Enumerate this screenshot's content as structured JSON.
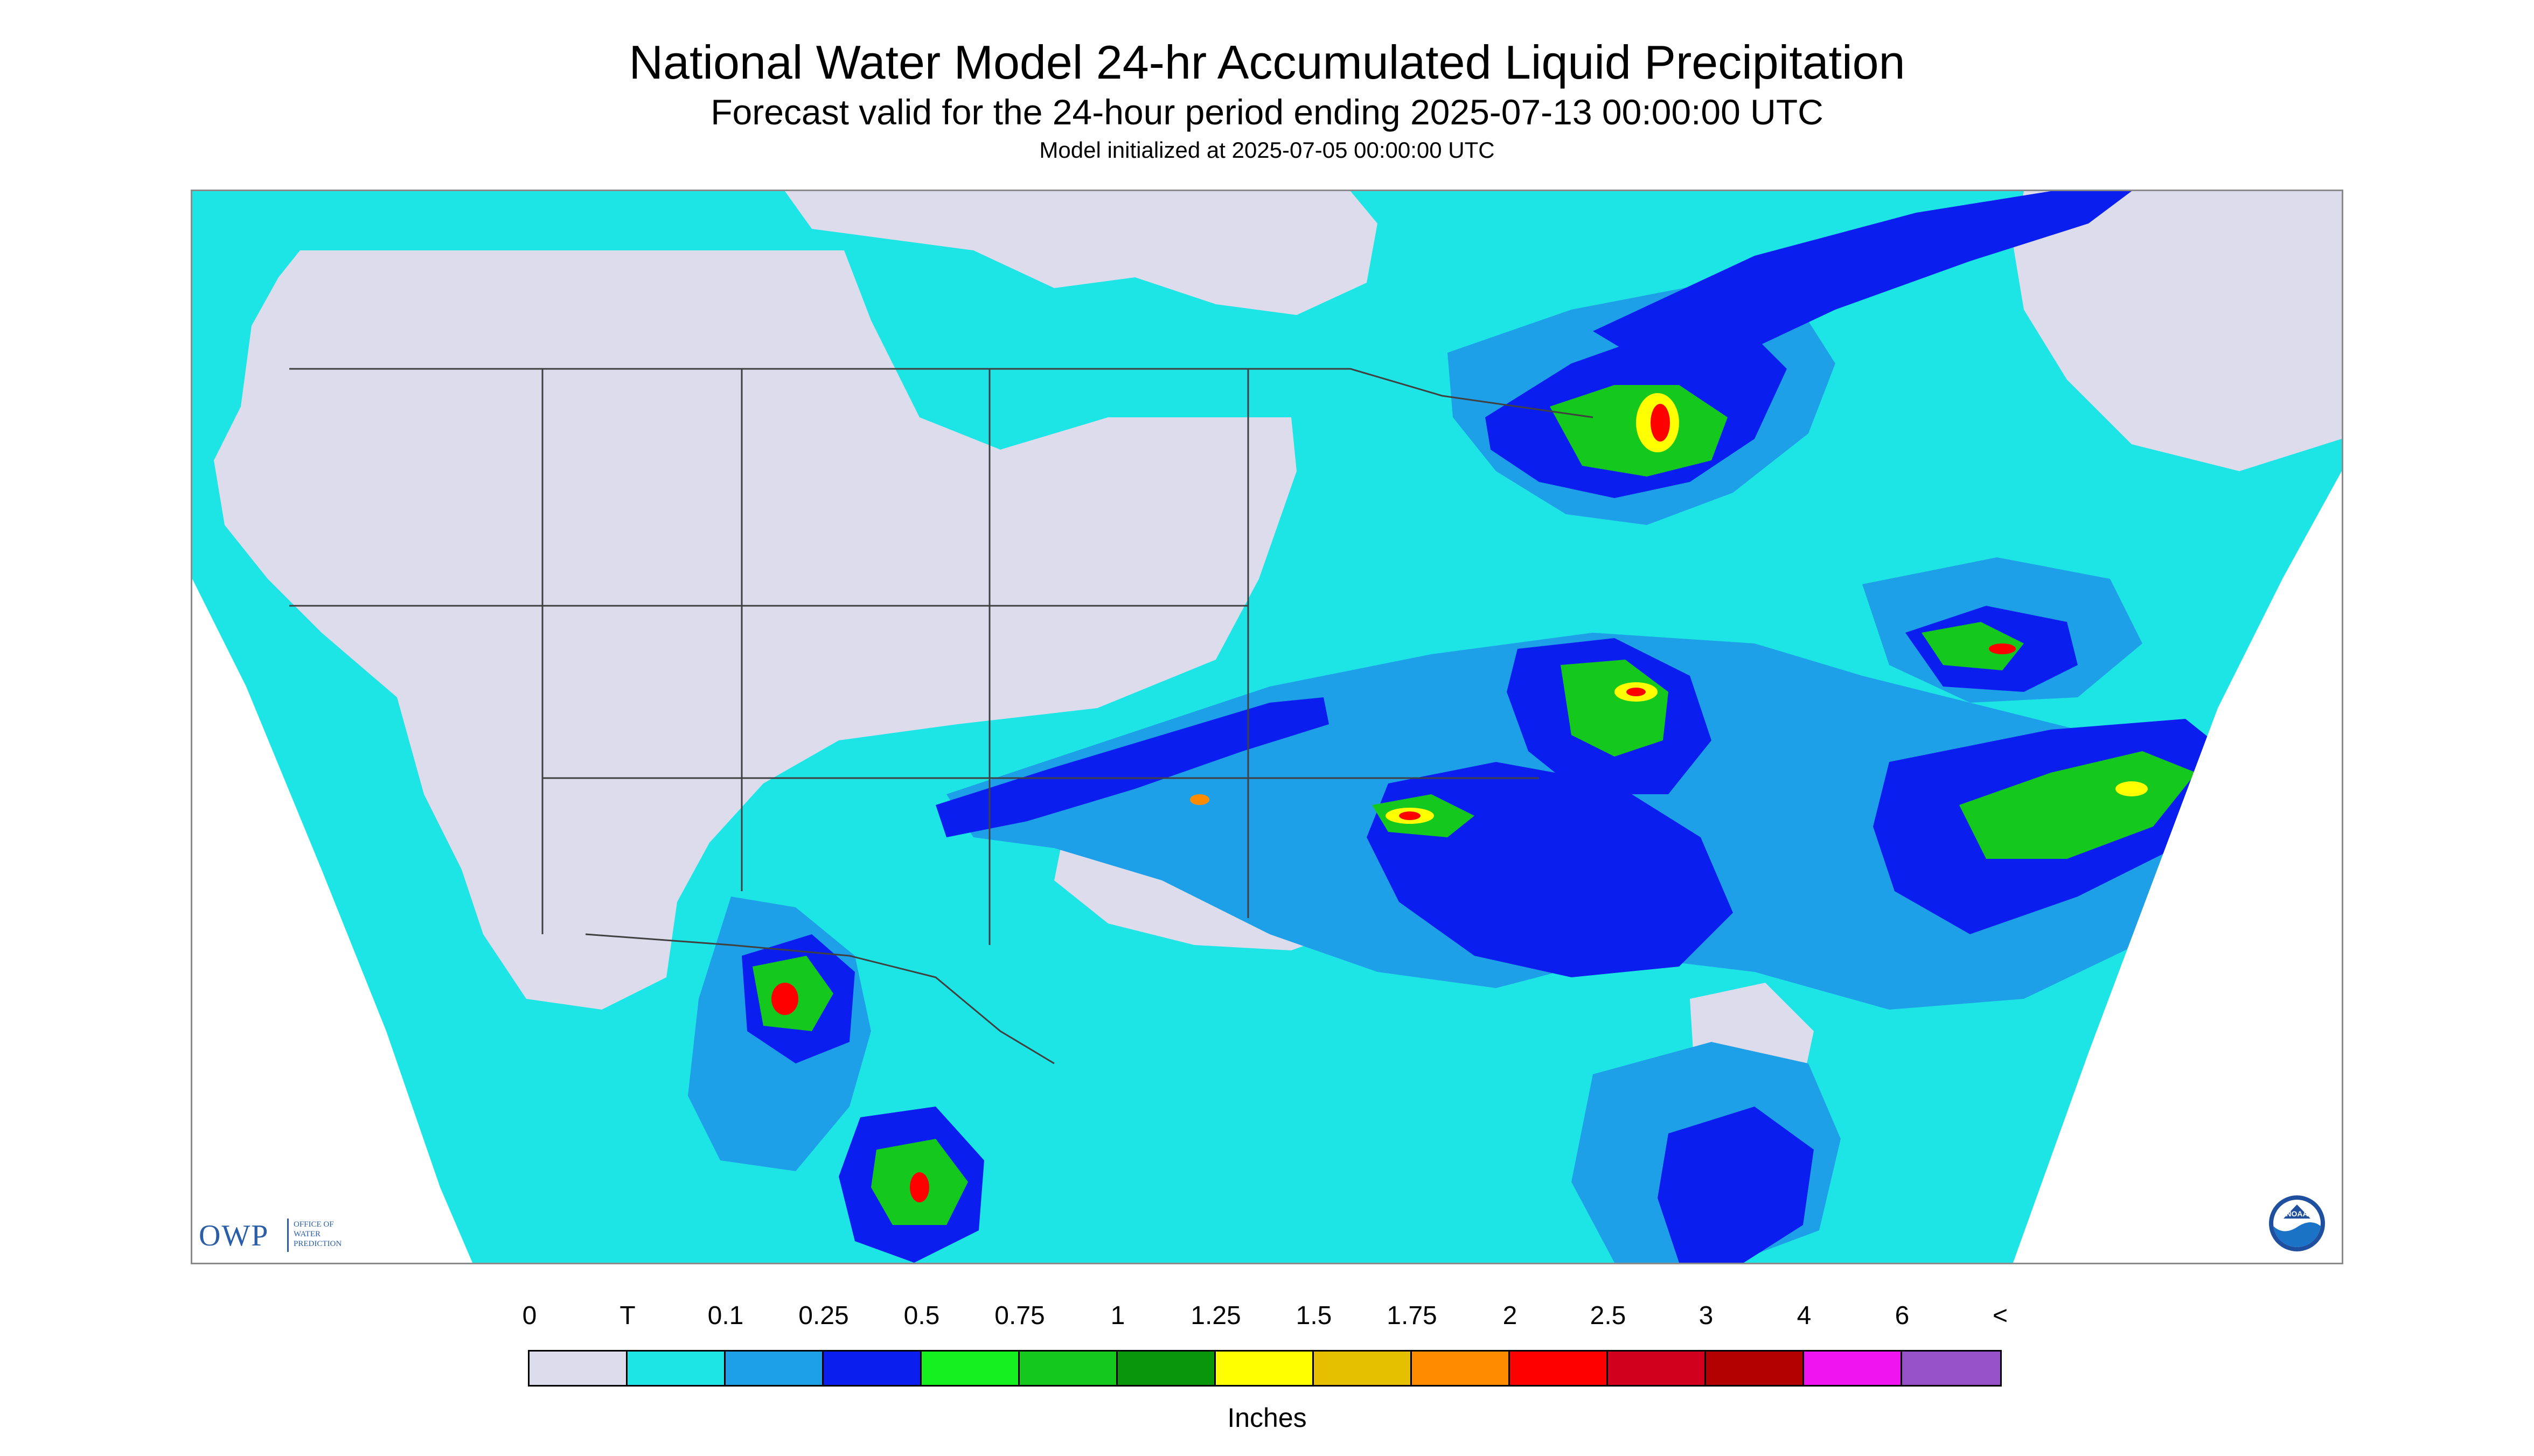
{
  "header": {
    "title": "National Water Model 24-hr Accumulated Liquid Precipitation",
    "subtitle": "Forecast valid for the 24-hour period ending 2025-07-13 00:00:00 UTC",
    "init_line": "Model initialized at 2025-07-05 00:00:00 UTC"
  },
  "logos": {
    "owp_text": "OWP",
    "owp_sub": "OFFICE OF\nWATER\nPREDICTION",
    "noaa_text": "NOAA"
  },
  "legend": {
    "labels": [
      "0",
      "T",
      "0.1",
      "0.25",
      "0.5",
      "0.75",
      "1",
      "1.25",
      "1.5",
      "1.75",
      "2",
      "2.5",
      "3",
      "4",
      "6",
      "<"
    ],
    "colors": [
      "#dcdcec",
      "#1ee5e5",
      "#1ea0e8",
      "#0a1ef0",
      "#14f01e",
      "#14c81e",
      "#0a960a",
      "#ffff00",
      "#e6be00",
      "#ff8c00",
      "#ff0000",
      "#d2001e",
      "#b40000",
      "#f014f0",
      "#9650c8"
    ],
    "units": "Inches"
  },
  "map": {
    "colors": {
      "no_precip": "#dcdcec",
      "trace": "#1ee5e5",
      "light": "#1ea0e8",
      "blue": "#0a1ef0",
      "green": "#14f01e",
      "mid_green": "#14c81e",
      "dark_green": "#0a960a",
      "yellow": "#ffff00",
      "orange": "#ff8c00",
      "red": "#ff0000",
      "dark_red": "#b40000",
      "outside": "#ffffff",
      "lines": "#404040"
    }
  }
}
